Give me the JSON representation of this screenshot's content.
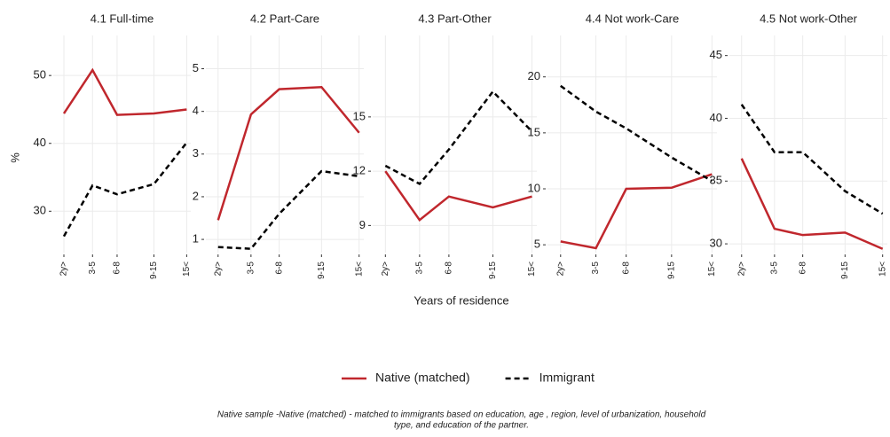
{
  "chart_data": [
    {
      "type": "line",
      "title": "4.1 Full-time",
      "x": [
        1,
        4.5,
        7.5,
        12,
        16
      ],
      "xticks": [
        {
          "value": 1,
          "label": "2y>"
        },
        {
          "value": 4.5,
          "label": "3-5"
        },
        {
          "value": 7.5,
          "label": "6-8"
        },
        {
          "value": 12,
          "label": "9-15"
        },
        {
          "value": 16,
          "label": "15<"
        }
      ],
      "xlim": [
        -0.3,
        16.5
      ],
      "ylim": [
        23.9,
        55.9
      ],
      "yticks": [
        30,
        40,
        50
      ],
      "grid": true,
      "series": [
        {
          "name": "Native (matched)",
          "color": "#c0272d",
          "dash": false,
          "values": [
            44.4,
            50.8,
            44.2,
            44.4,
            45.0
          ]
        },
        {
          "name": "Immigrant",
          "color": "#000000",
          "dash": true,
          "values": [
            26.3,
            33.8,
            32.5,
            34.0,
            40.1
          ]
        }
      ]
    },
    {
      "type": "line",
      "title": "4.2 Part-Care",
      "x": [
        1,
        4.5,
        7.5,
        12,
        16
      ],
      "xticks": [
        {
          "value": 1,
          "label": "2y>"
        },
        {
          "value": 4.5,
          "label": "3-5"
        },
        {
          "value": 7.5,
          "label": "6-8"
        },
        {
          "value": 12,
          "label": "9-15"
        },
        {
          "value": 16,
          "label": "15<"
        }
      ],
      "xlim": [
        -0.3,
        16.5
      ],
      "ylim": [
        0.69,
        5.78
      ],
      "yticks": [
        1,
        2,
        3,
        4,
        5
      ],
      "grid": true,
      "series": [
        {
          "name": "Native (matched)",
          "color": "#c0272d",
          "dash": false,
          "values": [
            1.45,
            3.93,
            4.52,
            4.57,
            3.5
          ]
        },
        {
          "name": "Immigrant",
          "color": "#000000",
          "dash": true,
          "values": [
            0.82,
            0.78,
            1.6,
            2.6,
            2.48
          ]
        }
      ]
    },
    {
      "type": "line",
      "title": "4.3 Part-Other",
      "x": [
        1,
        4.5,
        7.5,
        12,
        16
      ],
      "xticks": [
        {
          "value": 1,
          "label": "2y>"
        },
        {
          "value": 4.5,
          "label": "3-5"
        },
        {
          "value": 7.5,
          "label": "6-8"
        },
        {
          "value": 12,
          "label": "9-15"
        },
        {
          "value": 16,
          "label": "15<"
        }
      ],
      "xlim": [
        -0.3,
        16.5
      ],
      "ylim": [
        7.5,
        19.5
      ],
      "yticks": [
        9,
        12,
        15
      ],
      "grid": true,
      "series": [
        {
          "name": "Native (matched)",
          "color": "#c0272d",
          "dash": false,
          "values": [
            12.0,
            9.3,
            10.6,
            10.0,
            10.6
          ]
        },
        {
          "name": "Immigrant",
          "color": "#000000",
          "dash": true,
          "values": [
            12.3,
            11.3,
            13.2,
            16.4,
            14.2
          ]
        }
      ]
    },
    {
      "type": "line",
      "title": "4.4 Not work-Care",
      "x": [
        1,
        4.5,
        7.5,
        12,
        16
      ],
      "xticks": [
        {
          "value": 1,
          "label": "2y>"
        },
        {
          "value": 4.5,
          "label": "3-5"
        },
        {
          "value": 7.5,
          "label": "6-8"
        },
        {
          "value": 12,
          "label": "9-15"
        },
        {
          "value": 16,
          "label": "15<"
        }
      ],
      "xlim": [
        -0.3,
        16.5
      ],
      "ylim": [
        4.3,
        23.7
      ],
      "yticks": [
        5,
        10,
        15,
        20
      ],
      "grid": true,
      "series": [
        {
          "name": "Native (matched)",
          "color": "#c0272d",
          "dash": false,
          "values": [
            5.3,
            4.7,
            10.0,
            10.1,
            11.3
          ]
        },
        {
          "name": "Immigrant",
          "color": "#000000",
          "dash": true,
          "values": [
            19.2,
            16.9,
            15.4,
            12.8,
            10.7
          ]
        }
      ]
    },
    {
      "type": "line",
      "title": "4.5 Not work-Other",
      "x": [
        1,
        4.5,
        7.5,
        12,
        16
      ],
      "xticks": [
        {
          "value": 1,
          "label": "2y>"
        },
        {
          "value": 4.5,
          "label": "3-5"
        },
        {
          "value": 7.5,
          "label": "6-8"
        },
        {
          "value": 12,
          "label": "9-15"
        },
        {
          "value": 16,
          "label": "15<"
        }
      ],
      "xlim": [
        -0.3,
        16.5
      ],
      "ylim": [
        29.3,
        46.6
      ],
      "yticks": [
        30,
        35,
        40,
        45
      ],
      "grid": true,
      "series": [
        {
          "name": "Native (matched)",
          "color": "#c0272d",
          "dash": false,
          "values": [
            36.8,
            31.2,
            30.7,
            30.9,
            29.6
          ]
        },
        {
          "name": "Immigrant",
          "color": "#000000",
          "dash": true,
          "values": [
            41.1,
            37.3,
            37.3,
            34.2,
            32.4
          ]
        }
      ]
    }
  ],
  "xlabel": "Years of residence",
  "ylabel": "%",
  "caption": [
    "Native sample -Native (matched) - matched to immigrants based on education, age , region, level of urbanization, household",
    "type, and education of the partner."
  ]
}
